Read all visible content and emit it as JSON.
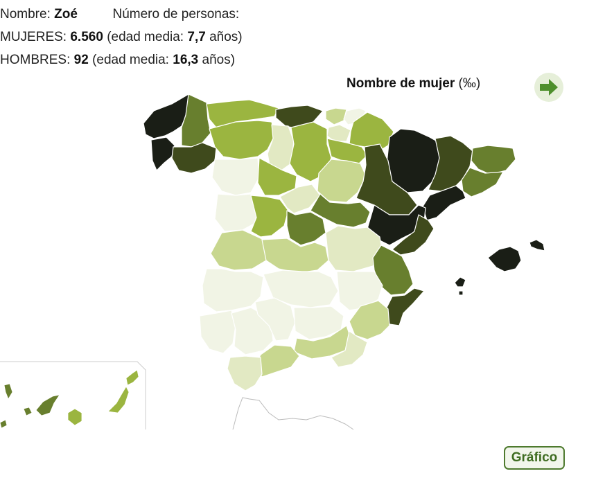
{
  "header": {
    "name_label": "Nombre:",
    "name_value": "Zoé",
    "count_label": "Número de personas:",
    "women_label": "MUJERES:",
    "women_count": "6.560",
    "women_age_prefix": "(edad media:",
    "women_age": "7,7",
    "women_age_suffix": "años)",
    "men_label": "HOMBRES:",
    "men_count": "92",
    "men_age_prefix": "(edad media:",
    "men_age": "16,3",
    "men_age_suffix": "años)"
  },
  "map": {
    "title": "Nombre de mujer",
    "unit": "(‰)",
    "next_icon": "arrow-right-icon",
    "colors": {
      "very_dark": "#1a1e16",
      "dark": "#3f4a1c",
      "medium_dark": "#687f2e",
      "medium": "#9bb540",
      "light": "#c8d78f",
      "very_light": "#e2e9c3",
      "lightest": "#f1f4e5",
      "border": "#ffffff"
    }
  },
  "actions": {
    "chart_button": "Gráfico"
  }
}
